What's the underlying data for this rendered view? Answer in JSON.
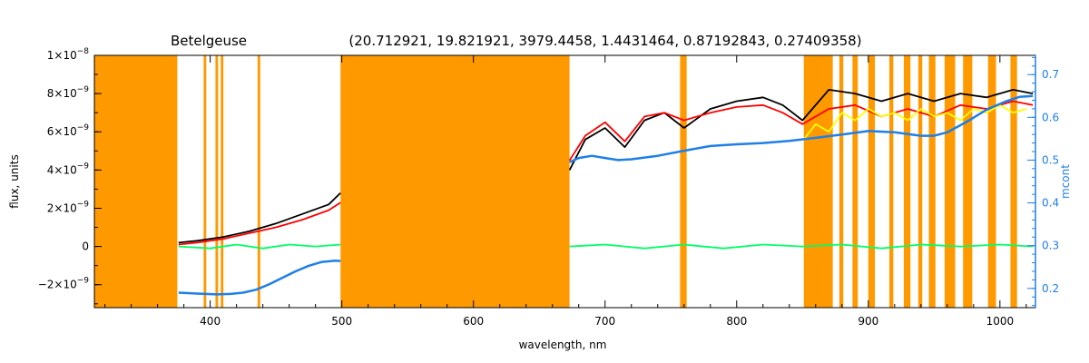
{
  "chart_data": {
    "type": "line",
    "title": "Betelgeuse",
    "subtitle": "(20.712921, 19.821921, 3979.4458, 1.4431464, 0.87192843, 0.27409358)",
    "xlabel": "wavelength, nm",
    "ylabel": "flux, units",
    "y2label": "mcont",
    "xlim": [
      312,
      1027
    ],
    "ylim": [
      -3.2e-09,
      1e-08
    ],
    "y2lim": [
      0.155,
      0.745
    ],
    "x_ticks": [
      400,
      500,
      600,
      700,
      800,
      900,
      1000
    ],
    "x_tick_labels": [
      "400",
      "500",
      "600",
      "700",
      "800",
      "900",
      "1000"
    ],
    "y_ticks": [
      -2e-09,
      0,
      2e-09,
      4e-09,
      6e-09,
      8e-09,
      1e-08
    ],
    "y_tick_labels": [
      {
        "mant": "−2×10",
        "exp": "−9"
      },
      {
        "mant": "0",
        "exp": ""
      },
      {
        "mant": "2×10",
        "exp": "−9"
      },
      {
        "mant": "4×10",
        "exp": "−9"
      },
      {
        "mant": "6×10",
        "exp": "−9"
      },
      {
        "mant": "8×10",
        "exp": "−9"
      },
      {
        "mant": "1×10",
        "exp": "−8"
      }
    ],
    "y2_ticks": [
      0.2,
      0.3,
      0.4,
      0.5,
      0.6,
      0.7
    ],
    "y2_tick_labels": [
      "0.2",
      "0.3",
      "0.4",
      "0.5",
      "0.6",
      "0.7"
    ],
    "grid": false,
    "masked_regions": [
      [
        312,
        375
      ],
      [
        395,
        397
      ],
      [
        404,
        406
      ],
      [
        408,
        410
      ],
      [
        436,
        438
      ],
      [
        499,
        673
      ],
      [
        757,
        762
      ],
      [
        851,
        873
      ],
      [
        878,
        881
      ],
      [
        888,
        892
      ],
      [
        900,
        905
      ],
      [
        916,
        919
      ],
      [
        927,
        932
      ],
      [
        938,
        941
      ],
      [
        946,
        951
      ],
      [
        958,
        966
      ],
      [
        972,
        979
      ],
      [
        991,
        997
      ],
      [
        1008,
        1013
      ]
    ],
    "series": [
      {
        "color": "#000000",
        "segments": [
          {
            "x": [
              376,
              390,
              410,
              430,
              450,
              470,
              490,
              499
            ],
            "y": [
              2e-10,
              3e-10,
              5e-10,
              8e-10,
              1.2e-09,
              1.7e-09,
              2.2e-09,
              2.8e-09
            ]
          },
          {
            "x": [
              673,
              685,
              700,
              715,
              730,
              745,
              760,
              780,
              800,
              820,
              835,
              850,
              870,
              890,
              910,
              930,
              950,
              970,
              990,
              1010,
              1025
            ],
            "y": [
              4e-09,
              5.6e-09,
              6.2e-09,
              5.2e-09,
              6.6e-09,
              7e-09,
              6.2e-09,
              7.2e-09,
              7.6e-09,
              7.8e-09,
              7.4e-09,
              6.6e-09,
              8.2e-09,
              8e-09,
              7.6e-09,
              8e-09,
              7.6e-09,
              8e-09,
              7.8e-09,
              8.2e-09,
              8e-09
            ]
          }
        ]
      },
      {
        "color": "#ff0000",
        "segments": [
          {
            "x": [
              376,
              390,
              410,
              430,
              450,
              470,
              490,
              499
            ],
            "y": [
              1e-10,
              2e-10,
              4e-10,
              7e-10,
              1e-09,
              1.4e-09,
              1.9e-09,
              2.3e-09
            ]
          },
          {
            "x": [
              673,
              685,
              700,
              715,
              730,
              745,
              760,
              780,
              800,
              820,
              835,
              850,
              870,
              890,
              910,
              930,
              950,
              970,
              990,
              1010,
              1025
            ],
            "y": [
              4.5e-09,
              5.8e-09,
              6.5e-09,
              5.5e-09,
              6.8e-09,
              7e-09,
              6.6e-09,
              7e-09,
              7.3e-09,
              7.4e-09,
              7e-09,
              6.4e-09,
              7.2e-09,
              7.4e-09,
              6.8e-09,
              7.2e-09,
              6.8e-09,
              7.4e-09,
              7.2e-09,
              7.6e-09,
              7.4e-09
            ]
          }
        ]
      },
      {
        "color": "#ffff00",
        "segments": [
          {
            "x": [
              851,
              860,
              870,
              880,
              890,
              900,
              910,
              920,
              930,
              940,
              950,
              960,
              970,
              980,
              990,
              1000,
              1010,
              1020
            ],
            "y": [
              5.6e-09,
              6.4e-09,
              6e-09,
              7e-09,
              6.6e-09,
              7.2e-09,
              6.8e-09,
              7e-09,
              6.6e-09,
              7.2e-09,
              6.8e-09,
              7e-09,
              6.6e-09,
              7.2e-09,
              7e-09,
              7.4e-09,
              7e-09,
              7.2e-09
            ]
          }
        ]
      },
      {
        "color": "#00ff66",
        "segments": [
          {
            "x": [
              376,
              400,
              420,
              440,
              460,
              480,
              499
            ],
            "y": [
              0.0,
              -1e-10,
              1e-10,
              -1e-10,
              1e-10,
              0.0,
              1e-10
            ]
          },
          {
            "x": [
              673,
              700,
              730,
              760,
              790,
              820,
              850,
              880,
              910,
              940,
              970,
              1000,
              1025
            ],
            "y": [
              0.0,
              1e-10,
              -1e-10,
              1e-10,
              -1e-10,
              1e-10,
              0.0,
              1e-10,
              -1e-10,
              1e-10,
              0.0,
              1e-10,
              0.0
            ]
          }
        ]
      },
      {
        "color": "#1e7fe8",
        "axis": "right",
        "segments": [
          {
            "x": [
              376,
              390,
              405,
              415,
              425,
              435,
              445,
              455,
              465,
              475,
              485,
              495,
              499
            ],
            "y": [
              0.19,
              0.188,
              0.186,
              0.187,
              0.19,
              0.197,
              0.21,
              0.225,
              0.24,
              0.253,
              0.262,
              0.265,
              0.264
            ]
          },
          {
            "x": [
              673,
              680,
              690,
              700,
              710,
              720,
              740,
              760,
              780,
              800,
              820,
              840,
              860,
              880,
              900,
              920,
              940,
              950,
              960,
              975,
              990,
              1005,
              1015,
              1025
            ],
            "y": [
              0.495,
              0.505,
              0.51,
              0.505,
              0.5,
              0.502,
              0.51,
              0.522,
              0.533,
              0.537,
              0.54,
              0.545,
              0.552,
              0.56,
              0.568,
              0.565,
              0.557,
              0.557,
              0.565,
              0.59,
              0.618,
              0.638,
              0.648,
              0.65
            ]
          }
        ]
      }
    ]
  }
}
